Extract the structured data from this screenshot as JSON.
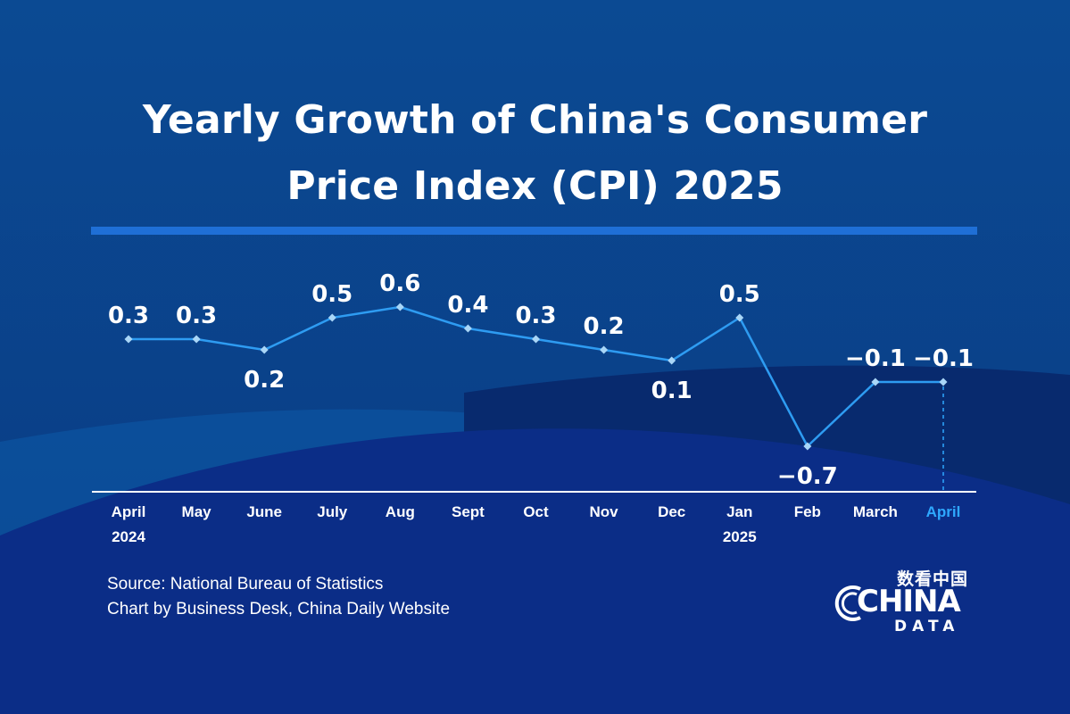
{
  "title_lines": [
    "Yearly Growth of China's Consumer",
    "Price Index (CPI) 2025"
  ],
  "colors": {
    "background": "#0a3c86",
    "accent": "#1f6fd6",
    "line": "#2e9cf2",
    "marker": "#a9d6f7",
    "highlight": "#2ea8ff",
    "text": "#ffffff"
  },
  "chart_data": {
    "type": "line",
    "categories": [
      "April",
      "May",
      "June",
      "July",
      "Aug",
      "Sept",
      "Oct",
      "Nov",
      "Dec",
      "Jan",
      "Feb",
      "March",
      "April"
    ],
    "year_labels": [
      "2024",
      "",
      "",
      "",
      "",
      "",
      "",
      "",
      "",
      "2025",
      "",
      "",
      ""
    ],
    "series": [
      {
        "values": [
          0.3,
          0.3,
          0.2,
          0.5,
          0.6,
          0.4,
          0.3,
          0.2,
          0.1,
          0.5,
          -0.7,
          -0.1,
          -0.1
        ],
        "labels": [
          "0.3",
          "0.3",
          "0.2",
          "0.5",
          "0.6",
          "0.4",
          "0.3",
          "0.2",
          "0.1",
          "0.5",
          "−0.7",
          "−0.1",
          "−0.1"
        ]
      }
    ],
    "highlight_index": 12,
    "ylim": [
      -0.7,
      0.6
    ],
    "grid": false,
    "legend": "none"
  },
  "footer": {
    "source": "Source: National Bureau of Statistics",
    "credit": "Chart by Business Desk, China Daily Website"
  },
  "logo": {
    "cn": "数看中国",
    "china": "CHINA",
    "data": "DATA"
  }
}
